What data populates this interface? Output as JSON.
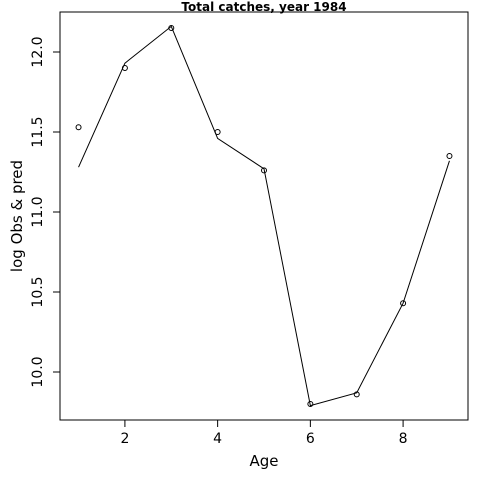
{
  "chart_data": {
    "type": "line",
    "title": "Total catches, year 1984",
    "xlabel": "Age",
    "ylabel": "log Obs & pred",
    "xlim": [
      0.6,
      9.4
    ],
    "ylim": [
      9.7,
      12.25
    ],
    "x_ticks": [
      2,
      4,
      6,
      8
    ],
    "y_ticks": [
      10.0,
      10.5,
      11.0,
      11.5,
      12.0
    ],
    "x_tick_labels": [
      "2",
      "4",
      "6",
      "8"
    ],
    "y_tick_labels": [
      "10.0",
      "10.5",
      "11.0",
      "11.5",
      "12.0"
    ],
    "grid": false,
    "series": [
      {
        "style": "points",
        "x": [
          1,
          2,
          3,
          4,
          5,
          6,
          7,
          8,
          9
        ],
        "y": [
          11.53,
          11.9,
          12.15,
          11.5,
          11.26,
          9.8,
          9.86,
          10.43,
          11.35
        ]
      },
      {
        "style": "line",
        "x": [
          1,
          2,
          3,
          4,
          5,
          6,
          7,
          8,
          9
        ],
        "y": [
          11.28,
          11.93,
          12.16,
          11.46,
          11.27,
          9.79,
          9.87,
          10.43,
          11.32
        ]
      }
    ]
  }
}
